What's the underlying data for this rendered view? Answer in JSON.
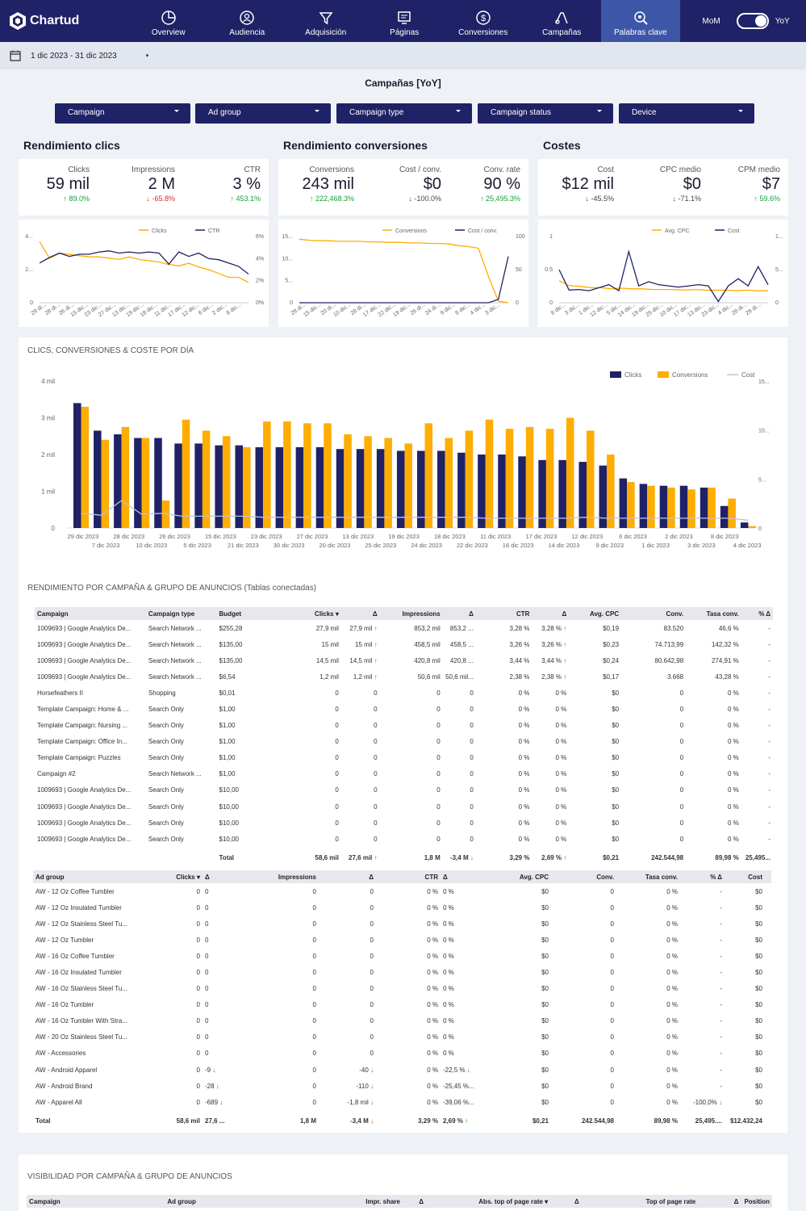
{
  "brand": "Chartud",
  "nav": [
    {
      "label": "Overview",
      "icon": "pie-chart-icon"
    },
    {
      "label": "Audiencia",
      "icon": "audience-icon"
    },
    {
      "label": "Adquisición",
      "icon": "funnel-icon"
    },
    {
      "label": "Páginas",
      "icon": "pages-icon"
    },
    {
      "label": "Conversiones",
      "icon": "dollar-icon"
    },
    {
      "label": "Campañas",
      "icon": "ads-icon"
    },
    {
      "label": "Palabras clave",
      "icon": "keyword-search-icon"
    }
  ],
  "toggle": {
    "left": "MoM",
    "right": "YoY"
  },
  "date_range": "1 dic 2023 - 31 dic 2023",
  "page_title": "Campañas [YoY]",
  "filters": [
    "Campaign",
    "Ad group",
    "Campaign type",
    "Campaign status",
    "Device"
  ],
  "sections": {
    "clicks": "Rendimiento clics",
    "conversions": "Rendimiento conversiones",
    "costs": "Costes"
  },
  "kpis": [
    {
      "label": "Clicks",
      "value": "59 mil",
      "delta": "89.0%",
      "dir": "up"
    },
    {
      "label": "Impressions",
      "value": "2 M",
      "delta": "-65.8%",
      "dir": "down"
    },
    {
      "label": "CTR",
      "value": "3 %",
      "delta": "453.1%",
      "dir": "up"
    },
    {
      "label": "Conversions",
      "value": "243 mil",
      "delta": "222,468.3%",
      "dir": "up"
    },
    {
      "label": "Cost / conv.",
      "value": "$0",
      "delta": "-100.0%",
      "dir": "neu"
    },
    {
      "label": "Conv. rate",
      "value": "90 %",
      "delta": "25,495.3%",
      "dir": "up"
    },
    {
      "label": "Cost",
      "value": "$12 mil",
      "delta": "-45.5%",
      "dir": "neu"
    },
    {
      "label": "CPC medio",
      "value": "$0",
      "delta": "-71.1%",
      "dir": "neu"
    },
    {
      "label": "CPM medio",
      "value": "$7",
      "delta": "59.6%",
      "dir": "up"
    }
  ],
  "mini_charts": [
    {
      "legend": [
        "Clicks",
        "CTR"
      ],
      "yl": [
        "4...",
        "2...",
        "0"
      ],
      "yr": [
        "6%",
        "4%",
        "2%",
        "0%"
      ],
      "x": [
        "29 di...",
        "28 di...",
        "26 di...",
        "15 dic...",
        "23 dic...",
        "27 dic...",
        "13 dic...",
        "19 dic...",
        "18 dic...",
        "11 dic...",
        "17 dic...",
        "12 dic...",
        "6 dic...",
        "2 dic...",
        "8 dic..."
      ],
      "s1": [
        4.8,
        3.5,
        3.9,
        3.8,
        3.7,
        3.6,
        3.6,
        3.5,
        3.4,
        3.6,
        3.4,
        3.3,
        3.2,
        3.0,
        2.9,
        3.1,
        2.8,
        2.6,
        2.3,
        2.0,
        2.0,
        1.6
      ],
      "s2": [
        3.6,
        4.1,
        4.5,
        4.2,
        4.4,
        4.4,
        4.6,
        4.7,
        4.5,
        4.6,
        4.5,
        4.6,
        4.5,
        3.5,
        4.6,
        4.2,
        4.5,
        4.0,
        3.9,
        3.6,
        3.3,
        2.6
      ]
    },
    {
      "legend": [
        "Conversions",
        "Cost / conv."
      ],
      "yl": [
        "15...",
        "10...",
        "5...",
        "0"
      ],
      "yr": [
        "100",
        "50",
        "0"
      ],
      "x": [
        "29 di...",
        "15 dic...",
        "20 di...",
        "10 dic...",
        "28 di...",
        "17 dic...",
        "22 dic...",
        "19 dic...",
        "26 di...",
        "24 di...",
        "9 dic...",
        "8 dic...",
        "4 dic...",
        "3 dic..."
      ],
      "s1": [
        12.0,
        11.8,
        11.7,
        11.7,
        11.6,
        11.6,
        11.6,
        11.5,
        11.5,
        11.4,
        11.4,
        11.3,
        11.3,
        11.2,
        11.2,
        11.1,
        10.8,
        10.6,
        10.3,
        5.0,
        0.3,
        0.0
      ],
      "s2": [
        0,
        0,
        0,
        0,
        0,
        0,
        0,
        0,
        0,
        0,
        0,
        0,
        0,
        0,
        0,
        0,
        0,
        0,
        0,
        0,
        5,
        70
      ]
    },
    {
      "legend": [
        "Avg. CPC",
        "Cost"
      ],
      "yl": [
        "1",
        "0.5",
        "0"
      ],
      "yr": [
        "1...",
        "5...",
        "0"
      ],
      "x": [
        "8 dic...",
        "3 dic...",
        "1 dic...",
        "12 dic...",
        "5 dic...",
        "14 dic...",
        "19 dic...",
        "25 dic...",
        "10 dic...",
        "17 dic...",
        "13 dic...",
        "23 dic...",
        "4 dic...",
        "28 di...",
        "29 di..."
      ],
      "s1": [
        0.35,
        0.27,
        0.26,
        0.24,
        0.24,
        0.22,
        0.23,
        0.22,
        0.22,
        0.21,
        0.21,
        0.21,
        0.2,
        0.21,
        0.2,
        0.2,
        0.2,
        0.19,
        0.2,
        0.19,
        0.19
      ],
      "s2": [
        0.55,
        0.21,
        0.22,
        0.2,
        0.25,
        0.3,
        0.2,
        0.85,
        0.28,
        0.35,
        0.3,
        0.28,
        0.26,
        0.28,
        0.3,
        0.28,
        0.02,
        0.28,
        0.4,
        0.28,
        0.6,
        0.3
      ]
    }
  ],
  "chart_data": {
    "type": "bar",
    "title": "CLICS, CONVERSIONES & COSTE POR DÍA",
    "legend": [
      "Clicks",
      "Conversions",
      "Cost"
    ],
    "yticks": [
      "4 mil",
      "3 mil",
      "2 mil",
      "1 mil",
      "0"
    ],
    "y2ticks": [
      "15...",
      "10...",
      "5...",
      "0"
    ],
    "x_top": [
      "29 dic 2023",
      "28 dic 2023",
      "26 dic 2023",
      "15 dic 2023",
      "23 dic 2023",
      "27 dic 2023",
      "13 dic 2023",
      "19 dic 2023",
      "18 dic 2023",
      "11 dic 2023",
      "17 dic 2023",
      "12 dic 2023",
      "6 dic 2023",
      "2 dic 2023",
      "8 dic 2023"
    ],
    "x_bottom": [
      "7 dic 2023",
      "10 dic 2023",
      "5 dic 2023",
      "21 dic 2023",
      "30 dic 2023",
      "20 dic 2023",
      "25 dic 2023",
      "24 dic 2023",
      "22 dic 2023",
      "16 dic 2023",
      "14 dic 2023",
      "9 dic 2023",
      "1 dic 2023",
      "3 dic 2023",
      "4 dic 2023"
    ],
    "clicks": [
      3400,
      2650,
      2550,
      2450,
      2450,
      2300,
      2300,
      2250,
      2250,
      2200,
      2200,
      2200,
      2200,
      2150,
      2150,
      2150,
      2100,
      2100,
      2100,
      2050,
      2000,
      2000,
      1950,
      1850,
      1850,
      1800,
      1700,
      1350,
      1200,
      1150,
      1150,
      1100,
      600,
      150
    ],
    "conversions": [
      3300,
      2400,
      2750,
      2450,
      750,
      2950,
      2650,
      2500,
      2200,
      2900,
      2900,
      2850,
      2850,
      2550,
      2500,
      2450,
      2300,
      2850,
      2450,
      2650,
      2950,
      2700,
      2750,
      2700,
      3000,
      2650,
      2000,
      1250,
      1150,
      1100,
      1050,
      1100,
      800,
      50
    ],
    "cost": [
      1.5,
      1.3,
      2.8,
      1.4,
      1.5,
      1.2,
      1.2,
      1.2,
      1.2,
      1.1,
      1.1,
      1.1,
      1.1,
      1.1,
      1.1,
      1.1,
      1.1,
      1.1,
      1.1,
      1.1,
      1.0,
      1.0,
      1.0,
      1.0,
      1.0,
      1.1,
      1.0,
      1.0,
      1.0,
      1.0,
      1.0,
      1.0,
      1.0,
      0.8
    ]
  },
  "camp_section_title": "RENDIMIENTO POR CAMPAÑA & GRUPO DE ANUNCIOS (Tablas conectadas)",
  "camp_headers": [
    "Campaign",
    "Campaign type",
    "Budget",
    "Clicks ▾",
    "Δ",
    "Impressions",
    "Δ",
    "CTR",
    "Δ",
    "Avg. CPC",
    "Conv.",
    "Tasa conv.",
    "% Δ"
  ],
  "camp_rows": [
    [
      "1009693 | Google Analytics De...",
      "Search Network ...",
      "$255,28",
      "27,9 mil",
      "27,9 mil ↑",
      "853,2 mil",
      "853,2 ...",
      "3,28 %",
      "3,28 % ↑",
      "$0,19",
      "83.520",
      "46,6 %",
      "-"
    ],
    [
      "1009693 | Google Analytics De...",
      "Search Network ...",
      "$135,00",
      "15 mil",
      "15 mil ↑",
      "458,5 mil",
      "458,5 ...",
      "3,26 %",
      "3,26 % ↑",
      "$0,23",
      "74.713,99",
      "142,32 %",
      "-"
    ],
    [
      "1009693 | Google Analytics De...",
      "Search Network ...",
      "$135,00",
      "14,5 mil",
      "14,5 mil ↑",
      "420,8 mil",
      "420,8 ...",
      "3,44 %",
      "3,44 % ↑",
      "$0,24",
      "80.642,98",
      "274,91 %",
      "-"
    ],
    [
      "1009693 | Google Analytics De...",
      "Search Network ...",
      "$6,54",
      "1,2 mil",
      "1,2 mil ↑",
      "50,6 mil",
      "50,6 mil...",
      "2,38 %",
      "2,38 % ↑",
      "$0,17",
      "3.668",
      "43,28 %",
      "-"
    ],
    [
      "Horsefeathers II",
      "Shopping",
      "$0,01",
      "0",
      "0",
      "0",
      "0",
      "0 %",
      "0 %",
      "$0",
      "0",
      "0 %",
      "-"
    ],
    [
      "Template Campaign: Home & ...",
      "Search Only",
      "$1,00",
      "0",
      "0",
      "0",
      "0",
      "0 %",
      "0 %",
      "$0",
      "0",
      "0 %",
      "-"
    ],
    [
      "Template Campaign: Nursing ...",
      "Search Only",
      "$1,00",
      "0",
      "0",
      "0",
      "0",
      "0 %",
      "0 %",
      "$0",
      "0",
      "0 %",
      "-"
    ],
    [
      "Template Campaign: Office In...",
      "Search Only",
      "$1,00",
      "0",
      "0",
      "0",
      "0",
      "0 %",
      "0 %",
      "$0",
      "0",
      "0 %",
      "-"
    ],
    [
      "Template Campaign: Puzzles",
      "Search Only",
      "$1,00",
      "0",
      "0",
      "0",
      "0",
      "0 %",
      "0 %",
      "$0",
      "0",
      "0 %",
      "-"
    ],
    [
      "Campaign #2",
      "Search Network ...",
      "$1,00",
      "0",
      "0",
      "0",
      "0",
      "0 %",
      "0 %",
      "$0",
      "0",
      "0 %",
      "-"
    ],
    [
      "1009693 | Google Analytics De...",
      "Search Only",
      "$10,00",
      "0",
      "0",
      "0",
      "0",
      "0 %",
      "0 %",
      "$0",
      "0",
      "0 %",
      "-"
    ],
    [
      "1009693 | Google Analytics De...",
      "Search Only",
      "$10,00",
      "0",
      "0",
      "0",
      "0",
      "0 %",
      "0 %",
      "$0",
      "0",
      "0 %",
      "-"
    ],
    [
      "1009693 | Google Analytics De...",
      "Search Only",
      "$10,00",
      "0",
      "0",
      "0",
      "0",
      "0 %",
      "0 %",
      "$0",
      "0",
      "0 %",
      "-"
    ],
    [
      "1009693 | Google Analytics De...",
      "Search Only",
      "$10,00",
      "0",
      "0",
      "0",
      "0",
      "0 %",
      "0 %",
      "$0",
      "0",
      "0 %",
      "-"
    ]
  ],
  "camp_total": [
    "",
    "",
    "Total",
    "58,6 mil",
    "27,6 mil ↑",
    "1,8 M",
    "-3,4 M ↓",
    "3,29 %",
    "2,69 % ↑",
    "$0,21",
    "242.544,98",
    "89,98 %",
    "25,495..."
  ],
  "ag_headers": [
    "Ad group",
    "Clicks ▾",
    "Δ",
    "Impressions",
    "Δ",
    "CTR",
    "Δ",
    "Avg. CPC",
    "Conv.",
    "Tasa conv.",
    "% Δ",
    "Cost"
  ],
  "ag_rows": [
    [
      "AW - 12 Oz Coffee Tumbler",
      "0",
      "0",
      "0",
      "0",
      "0 %",
      "0 %",
      "$0",
      "0",
      "0 %",
      "-",
      "$0"
    ],
    [
      "AW - 12 Oz Insulated Tumbler",
      "0",
      "0",
      "0",
      "0",
      "0 %",
      "0 %",
      "$0",
      "0",
      "0 %",
      "-",
      "$0"
    ],
    [
      "AW - 12 Oz Stainless Steel Tu...",
      "0",
      "0",
      "0",
      "0",
      "0 %",
      "0 %",
      "$0",
      "0",
      "0 %",
      "-",
      "$0"
    ],
    [
      "AW - 12 Oz Tumbler",
      "0",
      "0",
      "0",
      "0",
      "0 %",
      "0 %",
      "$0",
      "0",
      "0 %",
      "-",
      "$0"
    ],
    [
      "AW - 16 Oz Coffee Tumbler",
      "0",
      "0",
      "0",
      "0",
      "0 %",
      "0 %",
      "$0",
      "0",
      "0 %",
      "-",
      "$0"
    ],
    [
      "AW - 16 Oz Insulated Tumbler",
      "0",
      "0",
      "0",
      "0",
      "0 %",
      "0 %",
      "$0",
      "0",
      "0 %",
      "-",
      "$0"
    ],
    [
      "AW - 16 Oz Stainless Steel Tu...",
      "0",
      "0",
      "0",
      "0",
      "0 %",
      "0 %",
      "$0",
      "0",
      "0 %",
      "-",
      "$0"
    ],
    [
      "AW - 16 Oz Tumbler",
      "0",
      "0",
      "0",
      "0",
      "0 %",
      "0 %",
      "$0",
      "0",
      "0 %",
      "-",
      "$0"
    ],
    [
      "AW - 16 Oz Tumbler With Stra...",
      "0",
      "0",
      "0",
      "0",
      "0 %",
      "0 %",
      "$0",
      "0",
      "0 %",
      "-",
      "$0"
    ],
    [
      "AW - 20 Oz Stainless Steel Tu...",
      "0",
      "0",
      "0",
      "0",
      "0 %",
      "0 %",
      "$0",
      "0",
      "0 %",
      "-",
      "$0"
    ],
    [
      "AW - Accessories",
      "0",
      "0",
      "0",
      "0",
      "0 %",
      "0 %",
      "$0",
      "0",
      "0 %",
      "-",
      "$0"
    ],
    [
      "AW - Android Apparel",
      "0",
      "-9 ↓",
      "0",
      "-40 ↓",
      "0 %",
      "-22,5 % ↓",
      "$0",
      "0",
      "0 %",
      "-",
      "$0"
    ],
    [
      "AW - Android Brand",
      "0",
      "-28 ↓",
      "0",
      "-110 ↓",
      "0 %",
      "-25,45 %...",
      "$0",
      "0",
      "0 %",
      "-",
      "$0"
    ],
    [
      "AW - Apparel All",
      "0",
      "-689 ↓",
      "0",
      "-1,8 mil ↓",
      "0 %",
      "-39,06 %...",
      "$0",
      "0",
      "0 %",
      "-100,0% ↓",
      "$0"
    ]
  ],
  "ag_total": [
    "Total",
    "58,6 mil",
    "27,6 ...",
    "1,8 M",
    "-3,4 M ↓",
    "3,29 %",
    "2,69 % ↑",
    "$0,21",
    "242.544,98",
    "89,98 %",
    "25,495....",
    "$12.432,24"
  ],
  "vis_section_title": "VISIBILIDAD POR CAMPAÑA & GRUPO DE ANUNCIOS",
  "vis_headers": [
    "Campaign",
    "Ad group",
    "Impr. share",
    "Δ",
    "Abs. top of page rate ▾",
    "Δ",
    "Top of page rate",
    "Δ",
    "Position"
  ],
  "colors": {
    "navy": "#1f2266",
    "orange": "#ffad00",
    "active": "#3e56a8"
  }
}
